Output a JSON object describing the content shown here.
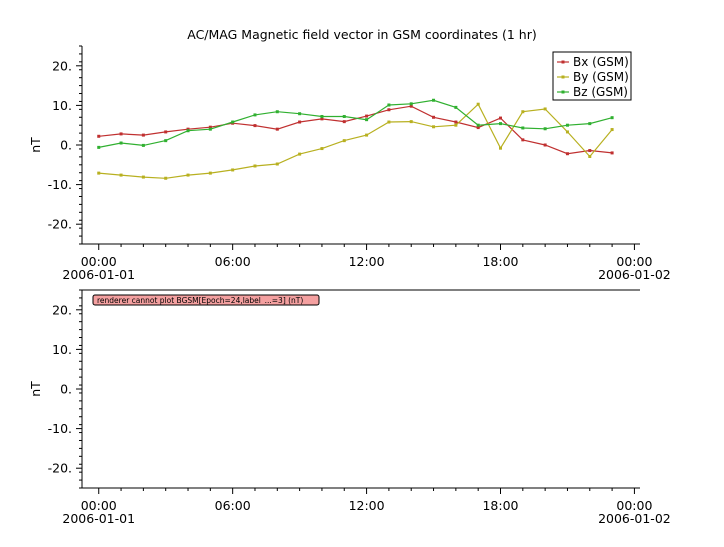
{
  "chart_data": [
    {
      "type": "line",
      "title": "AC/MAG  Magnetic field vector in GSM coordinates (1 hr)",
      "ylabel": "nT",
      "xlabel": "",
      "ylim": [
        -25,
        25
      ],
      "xlim": [
        -0.75,
        24.25
      ],
      "yticks": [
        20,
        10,
        0,
        -10,
        -20
      ],
      "ytick_labels": [
        "20.",
        "10.",
        "0.",
        "-10.",
        "-20."
      ],
      "xticks": [
        0,
        6,
        12,
        18,
        24
      ],
      "xtick_labels": [
        "00:00",
        "06:00",
        "12:00",
        "18:00",
        "00:00"
      ],
      "xdate_labels": [
        {
          "hour": 0,
          "text": "2006-01-01"
        },
        {
          "hour": 24,
          "text": "2006-01-02"
        }
      ],
      "legend_placement": "top-right",
      "grid": false,
      "x": [
        0,
        1,
        2,
        3,
        4,
        5,
        6,
        7,
        8,
        9,
        10,
        11,
        12,
        13,
        14,
        15,
        16,
        17,
        18,
        19,
        20,
        21,
        22,
        23
      ],
      "series": [
        {
          "name": "Bx (GSM)",
          "color": "#c03030",
          "values": [
            2.2,
            2.8,
            2.5,
            3.3,
            4.0,
            4.5,
            5.5,
            4.9,
            4.0,
            5.8,
            6.6,
            5.9,
            7.3,
            8.9,
            9.8,
            7.0,
            5.8,
            4.4,
            6.8,
            1.3,
            0.0,
            -2.2,
            -1.4,
            -2.0
          ]
        },
        {
          "name": "By (GSM)",
          "color": "#b8b020",
          "values": [
            -7.1,
            -7.6,
            -8.1,
            -8.4,
            -7.6,
            -7.1,
            -6.3,
            -5.3,
            -4.8,
            -2.3,
            -0.9,
            1.1,
            2.5,
            5.8,
            5.9,
            4.6,
            5.0,
            10.3,
            -0.8,
            8.4,
            9.1,
            3.3,
            -2.9,
            3.9
          ]
        },
        {
          "name": "Bz (GSM)",
          "color": "#30b030",
          "values": [
            -0.6,
            0.5,
            -0.1,
            1.1,
            3.6,
            4.0,
            5.8,
            7.6,
            8.4,
            7.9,
            7.2,
            7.2,
            6.4,
            10.1,
            10.4,
            11.3,
            9.5,
            5.0,
            5.4,
            4.3,
            4.1,
            5.0,
            5.4,
            6.9
          ]
        }
      ]
    },
    {
      "type": "line",
      "title": "",
      "ylabel": "nT",
      "xlabel": "",
      "ylim": [
        -25,
        25
      ],
      "xlim": [
        -0.75,
        24.25
      ],
      "yticks": [
        20,
        10,
        0,
        -10,
        -20
      ],
      "ytick_labels": [
        "20.",
        "10.",
        "0.",
        "-10.",
        "-20."
      ],
      "xticks": [
        0,
        6,
        12,
        18,
        24
      ],
      "xtick_labels": [
        "00:00",
        "06:00",
        "12:00",
        "18:00",
        "00:00"
      ],
      "xdate_labels": [
        {
          "hour": 0,
          "text": "2006-01-01"
        },
        {
          "hour": 24,
          "text": "2006-01-02"
        }
      ],
      "grid": false,
      "message": "renderer cannot plot BGSM[Epoch=24,label_...=3] (nT)",
      "series": []
    }
  ]
}
